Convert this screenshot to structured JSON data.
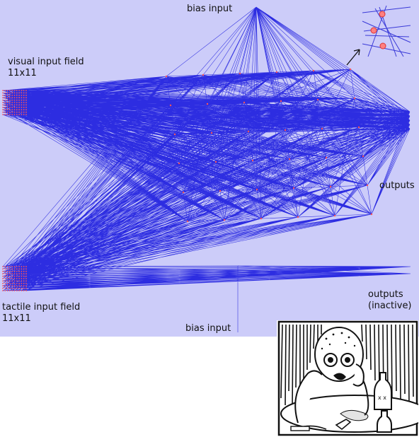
{
  "labels": {
    "bias_top": "bias input",
    "visual_field": "visual input field",
    "visual_size": "11x11",
    "outputs": "outputs",
    "tactile_field": "tactile input field",
    "tactile_size": "11x11",
    "outputs_inactive_line1": "outputs",
    "outputs_inactive_line2": "(inactive)",
    "bias_bottom": "bias input"
  },
  "colors": {
    "background": "#ccccf9",
    "connection": "#1010dd",
    "neuron": "#ff5555",
    "comic_ink": "#111111"
  }
}
